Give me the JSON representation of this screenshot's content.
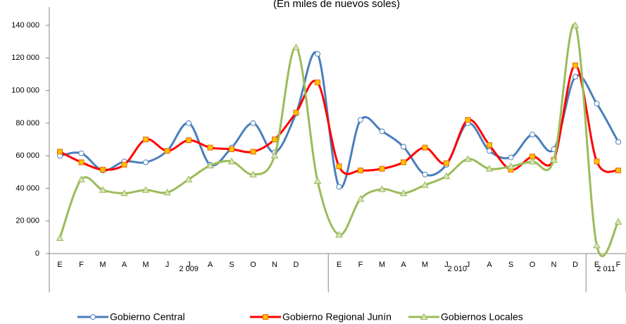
{
  "chart_data": {
    "type": "line",
    "subtitle": "(En miles de nuevos soles)",
    "categories": [
      "E",
      "F",
      "M",
      "A",
      "M",
      "J",
      "J",
      "A",
      "S",
      "O",
      "N",
      "D",
      null,
      "E",
      "F",
      "M",
      "A",
      "M",
      "J",
      "J",
      "A",
      "S",
      "O",
      "N",
      "D",
      "E",
      "F"
    ],
    "groups": [
      "2 009",
      "2 010",
      "2 011"
    ],
    "ylim": [
      0,
      140000
    ],
    "yticks": [
      0,
      {
        "value": 20000,
        "label": "20 000"
      },
      {
        "value": 40000,
        "label": "40 000"
      },
      {
        "value": 60000,
        "label": "60 000"
      },
      {
        "value": 80000,
        "label": "80 000"
      },
      {
        "value": 100000,
        "label": "100 000"
      },
      {
        "value": 120000,
        "label": "120 000"
      },
      {
        "value": 140000,
        "label": "140 000"
      }
    ],
    "smooth": true,
    "series": [
      {
        "name": "Gobierno Central",
        "color": "#4a7ebb",
        "marker": "circle",
        "marker_fill": "#ffffff",
        "values": [
          60000,
          61500,
          51000,
          56500,
          56000,
          63000,
          80000,
          54500,
          65000,
          80000,
          62000,
          86000,
          122500,
          41000,
          82000,
          75000,
          65500,
          48500,
          54500,
          80000,
          63000,
          59000,
          73000,
          64000,
          108500,
          92000,
          68500
        ]
      },
      {
        "name": "Gobierno Regional Junín",
        "color": "#ff0000",
        "marker": "square",
        "marker_fill": "#ffc000",
        "values": [
          62500,
          56000,
          51500,
          54500,
          70000,
          63000,
          69500,
          65000,
          64000,
          62500,
          70000,
          86500,
          105000,
          53500,
          51000,
          52000,
          56000,
          65000,
          55500,
          82000,
          66500,
          51500,
          59500,
          57500,
          115500,
          56500,
          51000
        ]
      },
      {
        "name": "Gobiernos Locales",
        "color": "#9bbb59",
        "marker": "triangle",
        "marker_fill": "#d7e4bd",
        "values": [
          9500,
          45500,
          39000,
          37000,
          39000,
          37500,
          45500,
          54000,
          56500,
          48500,
          60000,
          126500,
          44500,
          11500,
          33500,
          39500,
          37000,
          42000,
          47500,
          58000,
          52000,
          53500,
          56500,
          57500,
          140000,
          5000,
          19500
        ]
      }
    ]
  }
}
